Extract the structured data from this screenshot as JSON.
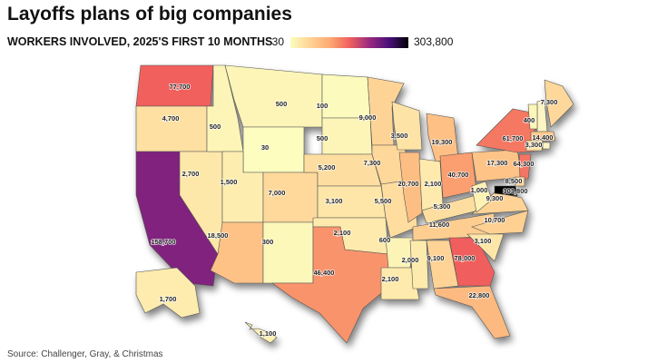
{
  "map": {
    "title": "Layoffs plans of big companies",
    "subtitle": "WORKERS INVOLVED, 2025'S FIRST 10 MONTHS",
    "legend": {
      "min": 30,
      "max": {
        "value": 303800,
        "label": "303,800"
      }
    },
    "scale": "sqrt",
    "colors": [
      "#fcfdbf",
      "#fed395",
      "#fdaa72",
      "#f1605d",
      "#9a2a80",
      "#4a1079",
      "#000004"
    ],
    "source": "Source: Challenger, Gray, & Christmas",
    "regions": [
      {
        "value": 77700,
        "label": "77,700"
      },
      {
        "value": 4700,
        "label": "4,700"
      },
      {
        "value": 158700,
        "label": "158,700"
      },
      {
        "value": 2700,
        "label": "2,700"
      },
      {
        "value": 500,
        "label": "500"
      },
      {
        "value": 500,
        "label": "500"
      },
      {
        "value": 30,
        "label": "30"
      },
      {
        "value": 1500,
        "label": "1,500"
      },
      {
        "value": 7000,
        "label": "7,000"
      },
      {
        "value": 18500,
        "label": "18,500"
      },
      {
        "value": 300,
        "label": "300"
      },
      {
        "value": 100,
        "label": "100"
      },
      {
        "value": 500,
        "label": "500"
      },
      {
        "value": 5200,
        "label": "5,200"
      },
      {
        "value": 3100,
        "label": "3,100"
      },
      {
        "value": 2100,
        "label": "2,100"
      },
      {
        "value": 46400,
        "label": "46,400"
      },
      {
        "value": 9000,
        "label": "9,000"
      },
      {
        "value": 7300,
        "label": "7,300"
      },
      {
        "value": 5500,
        "label": "5,500"
      },
      {
        "value": 600,
        "label": "600"
      },
      {
        "value": 2100,
        "label": "2,100"
      },
      {
        "value": 3500,
        "label": "3,500"
      },
      {
        "value": 20700,
        "label": "20,700"
      },
      {
        "value": 2000,
        "label": "2,000"
      },
      {
        "value": 19300,
        "label": "19,300"
      },
      {
        "value": 2100,
        "label": "2,100"
      },
      {
        "value": 11600,
        "label": "11,600"
      },
      {
        "value": 9100,
        "label": "9,100"
      },
      {
        "value": 40700,
        "label": "40,700"
      },
      {
        "value": 5300,
        "label": "5,300"
      },
      {
        "value": 78000,
        "label": "78,000"
      },
      {
        "value": 22800,
        "label": "22,800"
      },
      {
        "value": 3100,
        "label": "3,100"
      },
      {
        "value": 10700,
        "label": "10,700"
      },
      {
        "value": 9300,
        "label": "9,300"
      },
      {
        "value": 1000,
        "label": "1,000"
      },
      {
        "value": 17300,
        "label": "17,300"
      },
      {
        "value": 61700,
        "label": "61,700"
      },
      {
        "value": 64300,
        "label": "64,300"
      },
      {
        "value": 8500,
        "label": "8,500"
      },
      {
        "value": 303800,
        "label": "303,800"
      },
      {
        "value": 400,
        "label": "400"
      },
      {
        "value": 7300,
        "label": "7,300"
      },
      {
        "value": 14400,
        "label": "14,400"
      },
      {
        "value": 3300,
        "label": "3,300"
      },
      {
        "value": 1700,
        "label": "1,700"
      },
      {
        "value": 1100,
        "label": "1,100"
      }
    ]
  }
}
